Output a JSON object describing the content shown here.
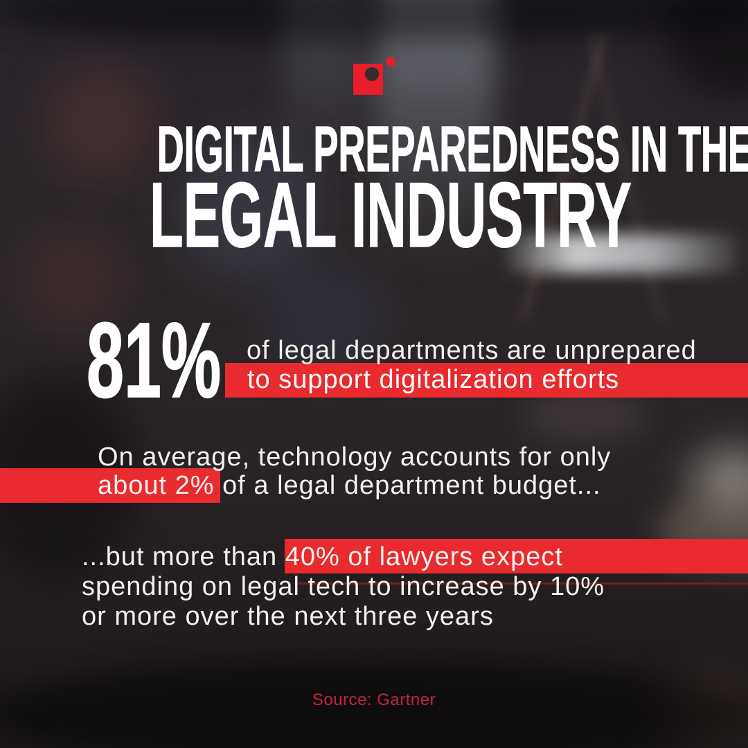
{
  "header": {
    "title_line_1": "DIGITAL PREPAREDNESS IN THE",
    "title_line_2": "LEGAL INDUSTRY"
  },
  "stat_81": {
    "value": "81%",
    "line_1": "of legal departments are unprepared",
    "line_2": "to support digitalization efforts",
    "highlighted_phrase": "to support digitalization efforts"
  },
  "stat_budget": {
    "line_1": "On average, technology accounts for only",
    "line_2": "about 2% of a legal department budget...",
    "highlighted_phrase": "about 2%"
  },
  "stat_spending": {
    "line_1": "...but more than 40% of lawyers expect",
    "line_2": "spending on legal tech to increase by 10%",
    "line_3": "or more over the next three years",
    "highlighted_phrase": "40% of lawyers expect"
  },
  "footer": {
    "source_label": "Source: Gartner"
  },
  "logo": {
    "square_color": "#e81e2d",
    "outer_dot_color": "#e81e2d",
    "inner_dot_color": "#322d2f"
  },
  "colors": {
    "accent_red": "#e92a2f",
    "source_text_red": "#c3243f",
    "title_white": "#ffffff",
    "body_text": "#f2f1ef",
    "background_dark": "#242022"
  }
}
